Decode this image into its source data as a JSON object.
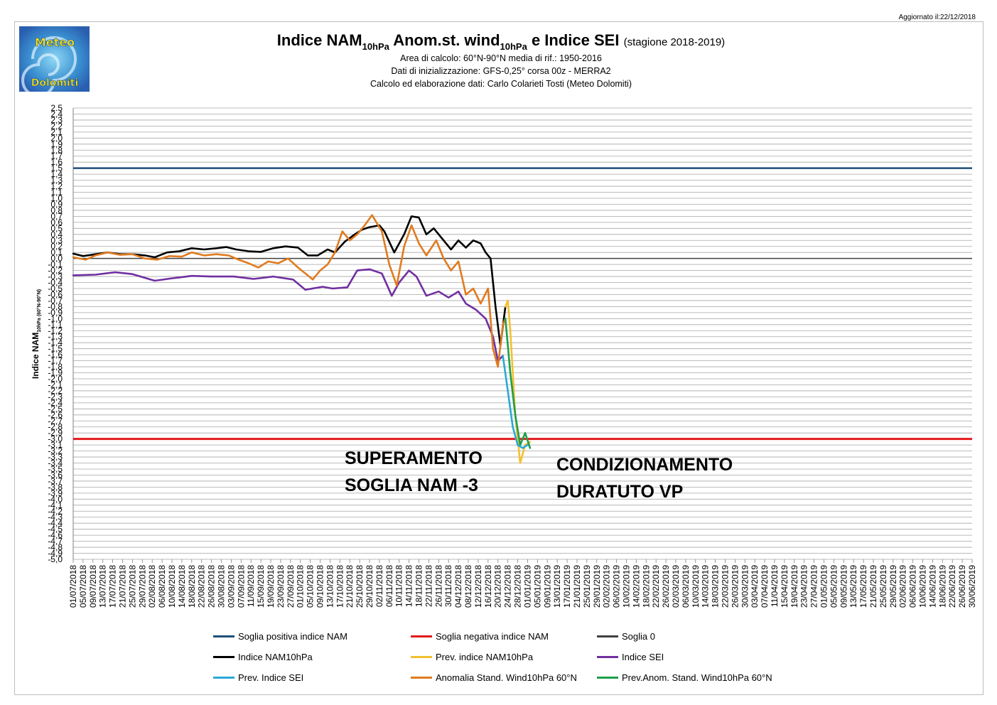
{
  "updated": "Aggiornato il:22/12/2018",
  "logo": {
    "line1": "Meteo",
    "line2": "Dolomiti"
  },
  "header": {
    "title_a": "Indice NAM",
    "title_a_sub": "10hPa",
    "title_b": " Anom.st. wind",
    "title_b_sub": "10hPa",
    "title_c": " e Indice SEI",
    "season": "(stagione 2018-2019)",
    "line1": "Area di calcolo: 60°N-90°N media di rif.: 1950-2016",
    "line2": "Dati di inizializzazione: GFS-0,25° corsa 00z - MERRA2",
    "line3": "Calcolo ed elaborazione dati: Carlo Colarieti Tosti (Meteo Dolomiti)"
  },
  "annotations": {
    "left_1": "SUPERAMENTO",
    "left_2": "SOGLIA NAM -3",
    "right_1": "CONDIZIONAMENTO",
    "right_2": "DURATUTO VP"
  },
  "colors": {
    "soglia_pos": "#1f4e79",
    "soglia_neg": "#e31a1c",
    "soglia_0": "#404040",
    "nam": "#000000",
    "prev_nam": "#f2c12e",
    "sei": "#7030a0",
    "prev_sei": "#2aa8d8",
    "wind": "#e07b1f",
    "prev_wind": "#1f9e4a",
    "grid": "#a6a6a6"
  },
  "legend": [
    {
      "label": "Soglia positiva indice NAM",
      "color": "#1f4e79"
    },
    {
      "label": "Soglia negativa indice NAM",
      "color": "#e31a1c"
    },
    {
      "label": "Soglia 0",
      "color": "#404040"
    },
    {
      "label": "Indice NAM10hPa",
      "color": "#000000"
    },
    {
      "label": "Prev. indice NAM10hPa",
      "color": "#f2c12e"
    },
    {
      "label": "Indice SEI",
      "color": "#7030a0"
    },
    {
      "label": "Prev. Indice SEI",
      "color": "#2aa8d8"
    },
    {
      "label": "Anomalia Stand. Wind10hPa 60°N",
      "color": "#e07b1f"
    },
    {
      "label": "Prev.Anom. Stand. Wind10hPa 60°N",
      "color": "#1f9e4a"
    }
  ],
  "chart_data": {
    "type": "line",
    "ylabel": "Indice NAM",
    "ylabel_sub": "10hPa (60°N-90°N)",
    "ylim": [
      -5.0,
      2.5
    ],
    "ystep": 0.1,
    "ytick_labels": [
      "2.5",
      "2,4",
      "2,3",
      "2,2",
      "2,1",
      "2,0",
      "1,9",
      "1,8",
      "1,7",
      "1,6",
      "1,5",
      "1,4",
      "1,3",
      "1,2",
      "1,1",
      "1,0",
      "0,9",
      "0,8",
      "0,7",
      "0,6",
      "0,5",
      "0,4",
      "0,3",
      "0,2",
      "0,1",
      "0,0",
      "-0,1",
      "-0,2",
      "-0,3",
      "-0,4",
      "-0,5",
      "-0,6",
      "-0,7",
      "-0,8",
      "-0,9",
      "-1,0",
      "-1,1",
      "-1,2",
      "-1,3",
      "-1,4",
      "-1,5",
      "-1,6",
      "-1,7",
      "-1,8",
      "-1,9",
      "-2,0",
      "-2,1",
      "-2,2",
      "-2,3",
      "-2,4",
      "-2,5",
      "-2,6",
      "-2,7",
      "-2,8",
      "-2,9",
      "-3,0",
      "-3,1",
      "-3,2",
      "-3,3",
      "-3,4",
      "-3,5",
      "-3,6",
      "-3,7",
      "-3,8",
      "-3,9",
      "-4,0",
      "-4,1",
      "-4,2",
      "-4,3",
      "-4,4",
      "-4,5",
      "-4,6",
      "-4,7",
      "-4,8",
      "-4,9",
      "-5,0"
    ],
    "x_start": "2018-07-01",
    "x_end": "2019-06-30",
    "x_tick_labels": [
      "01/07/2018",
      "05/07/2018",
      "09/07/2018",
      "13/07/2018",
      "17/07/2018",
      "21/07/2018",
      "25/07/2018",
      "29/07/2018",
      "02/08/2018",
      "06/08/2018",
      "10/08/2018",
      "14/08/2018",
      "18/08/2018",
      "22/08/2018",
      "26/08/2018",
      "30/08/2018",
      "03/09/2018",
      "07/09/2018",
      "11/09/2018",
      "15/09/2018",
      "19/09/2018",
      "23/09/2018",
      "27/09/2018",
      "01/10/2018",
      "05/10/2018",
      "09/10/2018",
      "13/10/2018",
      "17/10/2018",
      "21/10/2018",
      "25/10/2018",
      "29/10/2018",
      "02/11/2018",
      "06/11/2018",
      "10/11/2018",
      "14/11/2018",
      "18/11/2018",
      "22/11/2018",
      "26/11/2018",
      "30/11/2018",
      "04/12/2018",
      "08/12/2018",
      "12/12/2018",
      "16/12/2018",
      "20/12/2018",
      "24/12/2018",
      "28/12/2018",
      "01/01/2019",
      "05/01/2019",
      "09/01/2019",
      "13/01/2019",
      "17/01/2019",
      "21/01/2019",
      "25/01/2019",
      "29/01/2019",
      "02/02/2019",
      "06/02/2019",
      "10/02/2019",
      "14/02/2019",
      "18/02/2019",
      "22/02/2019",
      "26/02/2019",
      "02/03/2019",
      "06/03/2019",
      "10/03/2019",
      "14/03/2019",
      "18/03/2019",
      "22/03/2019",
      "26/03/2019",
      "30/03/2019",
      "03/04/2019",
      "07/04/2019",
      "11/04/2019",
      "15/04/2019",
      "19/04/2019",
      "23/04/2019",
      "27/04/2019",
      "01/05/2019",
      "05/05/2019",
      "09/05/2019",
      "13/05/2019",
      "17/05/2019",
      "21/05/2019",
      "25/05/2019",
      "29/05/2019",
      "02/06/2019",
      "06/06/2019",
      "10/06/2019",
      "14/06/2019",
      "18/06/2019",
      "22/06/2019",
      "26/06/2019",
      "30/06/2019"
    ],
    "thresholds": [
      {
        "name": "Soglia positiva indice NAM",
        "value": 1.5
      },
      {
        "name": "Soglia negativa indice NAM",
        "value": -3.0
      },
      {
        "name": "Soglia 0",
        "value": 0.0
      }
    ],
    "series": [
      {
        "name": "Indice NAM10hPa",
        "points": [
          [
            "2018-07-01",
            0.08
          ],
          [
            "2018-07-05",
            0.04
          ],
          [
            "2018-07-10",
            0.07
          ],
          [
            "2018-07-15",
            0.1
          ],
          [
            "2018-07-20",
            0.07
          ],
          [
            "2018-07-25",
            0.07
          ],
          [
            "2018-07-30",
            0.05
          ],
          [
            "2018-08-03",
            0.02
          ],
          [
            "2018-08-08",
            0.1
          ],
          [
            "2018-08-13",
            0.12
          ],
          [
            "2018-08-18",
            0.17
          ],
          [
            "2018-08-23",
            0.15
          ],
          [
            "2018-08-28",
            0.17
          ],
          [
            "2018-09-01",
            0.19
          ],
          [
            "2018-09-05",
            0.15
          ],
          [
            "2018-09-10",
            0.12
          ],
          [
            "2018-09-15",
            0.11
          ],
          [
            "2018-09-20",
            0.17
          ],
          [
            "2018-09-25",
            0.2
          ],
          [
            "2018-09-30",
            0.18
          ],
          [
            "2018-10-04",
            0.05
          ],
          [
            "2018-10-08",
            0.05
          ],
          [
            "2018-10-12",
            0.15
          ],
          [
            "2018-10-15",
            0.1
          ],
          [
            "2018-10-19",
            0.28
          ],
          [
            "2018-10-23",
            0.4
          ],
          [
            "2018-10-26",
            0.48
          ],
          [
            "2018-10-29",
            0.52
          ],
          [
            "2018-11-02",
            0.55
          ],
          [
            "2018-11-04",
            0.45
          ],
          [
            "2018-11-08",
            0.1
          ],
          [
            "2018-11-12",
            0.4
          ],
          [
            "2018-11-15",
            0.7
          ],
          [
            "2018-11-18",
            0.68
          ],
          [
            "2018-11-21",
            0.4
          ],
          [
            "2018-11-24",
            0.5
          ],
          [
            "2018-11-28",
            0.3
          ],
          [
            "2018-12-01",
            0.15
          ],
          [
            "2018-12-04",
            0.3
          ],
          [
            "2018-12-07",
            0.18
          ],
          [
            "2018-12-10",
            0.3
          ],
          [
            "2018-12-13",
            0.25
          ],
          [
            "2018-12-15",
            0.1
          ],
          [
            "2018-12-17",
            0.0
          ],
          [
            "2018-12-19",
            -0.8
          ],
          [
            "2018-12-21",
            -1.45
          ],
          [
            "2018-12-23",
            -0.8
          ]
        ],
        "color": "#000000"
      },
      {
        "name": "Prev. indice NAM10hPa",
        "points": [
          [
            "2018-12-23",
            -0.8
          ],
          [
            "2018-12-24",
            -0.7
          ],
          [
            "2018-12-25",
            -1.2
          ],
          [
            "2018-12-27",
            -2.6
          ],
          [
            "2018-12-29",
            -3.4
          ],
          [
            "2018-12-31",
            -3.1
          ],
          [
            "2019-01-02",
            -3.05
          ]
        ],
        "color": "#f2c12e"
      },
      {
        "name": "Indice SEI",
        "points": [
          [
            "2018-07-01",
            -0.28
          ],
          [
            "2018-07-10",
            -0.27
          ],
          [
            "2018-07-18",
            -0.23
          ],
          [
            "2018-07-25",
            -0.26
          ],
          [
            "2018-08-03",
            -0.37
          ],
          [
            "2018-08-10",
            -0.33
          ],
          [
            "2018-08-18",
            -0.29
          ],
          [
            "2018-08-26",
            -0.3
          ],
          [
            "2018-09-04",
            -0.3
          ],
          [
            "2018-09-12",
            -0.34
          ],
          [
            "2018-09-20",
            -0.3
          ],
          [
            "2018-09-28",
            -0.35
          ],
          [
            "2018-10-03",
            -0.52
          ],
          [
            "2018-10-10",
            -0.47
          ],
          [
            "2018-10-14",
            -0.5
          ],
          [
            "2018-10-20",
            -0.48
          ],
          [
            "2018-10-24",
            -0.2
          ],
          [
            "2018-10-29",
            -0.18
          ],
          [
            "2018-11-03",
            -0.25
          ],
          [
            "2018-11-07",
            -0.62
          ],
          [
            "2018-11-10",
            -0.4
          ],
          [
            "2018-11-14",
            -0.2
          ],
          [
            "2018-11-17",
            -0.3
          ],
          [
            "2018-11-21",
            -0.62
          ],
          [
            "2018-11-26",
            -0.55
          ],
          [
            "2018-11-30",
            -0.65
          ],
          [
            "2018-12-04",
            -0.55
          ],
          [
            "2018-12-07",
            -0.75
          ],
          [
            "2018-12-11",
            -0.85
          ],
          [
            "2018-12-15",
            -1.0
          ],
          [
            "2018-12-18",
            -1.3
          ],
          [
            "2018-12-20",
            -1.7
          ],
          [
            "2018-12-22",
            -1.62
          ]
        ],
        "color": "#7030a0"
      },
      {
        "name": "Prev. Indice SEI",
        "points": [
          [
            "2018-12-22",
            -1.62
          ],
          [
            "2018-12-24",
            -2.2
          ],
          [
            "2018-12-26",
            -2.8
          ],
          [
            "2018-12-28",
            -3.1
          ],
          [
            "2018-12-30",
            -3.15
          ],
          [
            "2019-01-01",
            -3.1
          ]
        ],
        "color": "#2aa8d8"
      },
      {
        "name": "Anomalia Stand. Wind10hPa 60°N",
        "points": [
          [
            "2018-07-01",
            0.02
          ],
          [
            "2018-07-06",
            -0.02
          ],
          [
            "2018-07-10",
            0.05
          ],
          [
            "2018-07-15",
            0.1
          ],
          [
            "2018-07-20",
            0.06
          ],
          [
            "2018-07-25",
            0.07
          ],
          [
            "2018-07-30",
            0.0
          ],
          [
            "2018-08-04",
            -0.02
          ],
          [
            "2018-08-09",
            0.04
          ],
          [
            "2018-08-14",
            0.03
          ],
          [
            "2018-08-18",
            0.1
          ],
          [
            "2018-08-23",
            0.05
          ],
          [
            "2018-08-28",
            0.07
          ],
          [
            "2018-09-02",
            0.05
          ],
          [
            "2018-09-06",
            -0.02
          ],
          [
            "2018-09-10",
            -0.08
          ],
          [
            "2018-09-14",
            -0.15
          ],
          [
            "2018-09-18",
            -0.05
          ],
          [
            "2018-09-22",
            -0.08
          ],
          [
            "2018-09-26",
            0.0
          ],
          [
            "2018-09-30",
            -0.15
          ],
          [
            "2018-10-03",
            -0.25
          ],
          [
            "2018-10-06",
            -0.35
          ],
          [
            "2018-10-09",
            -0.2
          ],
          [
            "2018-10-12",
            -0.1
          ],
          [
            "2018-10-15",
            0.1
          ],
          [
            "2018-10-18",
            0.45
          ],
          [
            "2018-10-21",
            0.3
          ],
          [
            "2018-10-24",
            0.4
          ],
          [
            "2018-10-27",
            0.55
          ],
          [
            "2018-10-30",
            0.72
          ],
          [
            "2018-11-03",
            0.45
          ],
          [
            "2018-11-06",
            -0.1
          ],
          [
            "2018-11-09",
            -0.45
          ],
          [
            "2018-11-12",
            0.2
          ],
          [
            "2018-11-15",
            0.55
          ],
          [
            "2018-11-18",
            0.25
          ],
          [
            "2018-11-21",
            0.05
          ],
          [
            "2018-11-25",
            0.3
          ],
          [
            "2018-11-28",
            0.0
          ],
          [
            "2018-12-01",
            -0.2
          ],
          [
            "2018-12-04",
            -0.05
          ],
          [
            "2018-12-07",
            -0.6
          ],
          [
            "2018-12-10",
            -0.5
          ],
          [
            "2018-12-13",
            -0.75
          ],
          [
            "2018-12-16",
            -0.5
          ],
          [
            "2018-12-18",
            -1.5
          ],
          [
            "2018-12-20",
            -1.8
          ],
          [
            "2018-12-22",
            -1.1
          ],
          [
            "2018-12-23",
            -1.0
          ]
        ],
        "color": "#e07b1f"
      },
      {
        "name": "Prev.Anom. Stand. Wind10hPa 60°N",
        "points": [
          [
            "2018-12-23",
            -1.0
          ],
          [
            "2018-12-25",
            -1.9
          ],
          [
            "2018-12-27",
            -2.6
          ],
          [
            "2018-12-29",
            -3.1
          ],
          [
            "2018-12-31",
            -2.9
          ],
          [
            "2019-01-02",
            -3.15
          ]
        ],
        "color": "#1f9e4a"
      }
    ]
  }
}
